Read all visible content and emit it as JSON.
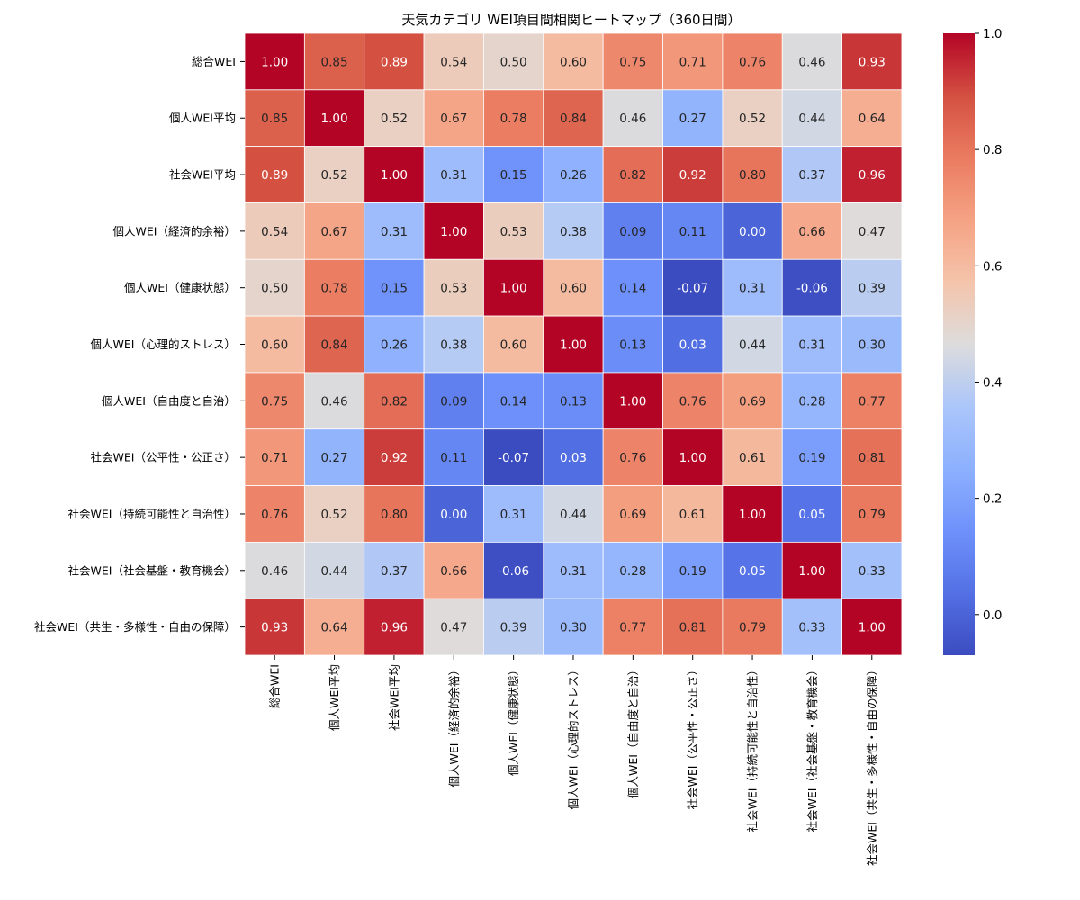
{
  "chart_data": {
    "type": "heatmap",
    "title": "天気カテゴリ WEI項目間相関ヒートマップ（360日間）",
    "labels": [
      "総合WEI",
      "個人WEI平均",
      "社会WEI平均",
      "個人WEI（経済的余裕）",
      "個人WEI（健康状態）",
      "個人WEI（心理的ストレス）",
      "個人WEI（自由度と自治）",
      "社会WEI（公平性・公正さ）",
      "社会WEI（持続可能性と自治性）",
      "社会WEI（社会基盤・教育機会）",
      "社会WEI（共生・多様性・自由の保障）"
    ],
    "matrix": [
      [
        1.0,
        0.85,
        0.89,
        0.54,
        0.5,
        0.6,
        0.75,
        0.71,
        0.76,
        0.46,
        0.93
      ],
      [
        0.85,
        1.0,
        0.52,
        0.67,
        0.78,
        0.84,
        0.46,
        0.27,
        0.52,
        0.44,
        0.64
      ],
      [
        0.89,
        0.52,
        1.0,
        0.31,
        0.15,
        0.26,
        0.82,
        0.92,
        0.8,
        0.37,
        0.96
      ],
      [
        0.54,
        0.67,
        0.31,
        1.0,
        0.53,
        0.38,
        0.09,
        0.11,
        0.0,
        0.66,
        0.47
      ],
      [
        0.5,
        0.78,
        0.15,
        0.53,
        1.0,
        0.6,
        0.14,
        -0.07,
        0.31,
        -0.06,
        0.39
      ],
      [
        0.6,
        0.84,
        0.26,
        0.38,
        0.6,
        1.0,
        0.13,
        0.03,
        0.44,
        0.31,
        0.3
      ],
      [
        0.75,
        0.46,
        0.82,
        0.09,
        0.14,
        0.13,
        1.0,
        0.76,
        0.69,
        0.28,
        0.77
      ],
      [
        0.71,
        0.27,
        0.92,
        0.11,
        -0.07,
        0.03,
        0.76,
        1.0,
        0.61,
        0.19,
        0.81
      ],
      [
        0.76,
        0.52,
        0.8,
        0.0,
        0.31,
        0.44,
        0.69,
        0.61,
        1.0,
        0.05,
        0.79
      ],
      [
        0.46,
        0.44,
        0.37,
        0.66,
        -0.06,
        0.31,
        0.28,
        0.19,
        0.05,
        1.0,
        0.33
      ],
      [
        0.93,
        0.64,
        0.96,
        0.47,
        0.39,
        0.3,
        0.77,
        0.81,
        0.79,
        0.33,
        1.0
      ]
    ],
    "value_format": "0.00",
    "colormap": "coolwarm",
    "vmin": -0.07,
    "vmax": 1.0,
    "colorbar_ticks": [
      "0.0",
      "0.2",
      "0.4",
      "0.6",
      "0.8",
      "1.0"
    ],
    "colorbar_tick_values": [
      0.0,
      0.2,
      0.4,
      0.6,
      0.8,
      1.0
    ],
    "colors": {
      "cold": "#3b4cc0",
      "neutral": "#dddcdc",
      "hot": "#b40426"
    }
  }
}
